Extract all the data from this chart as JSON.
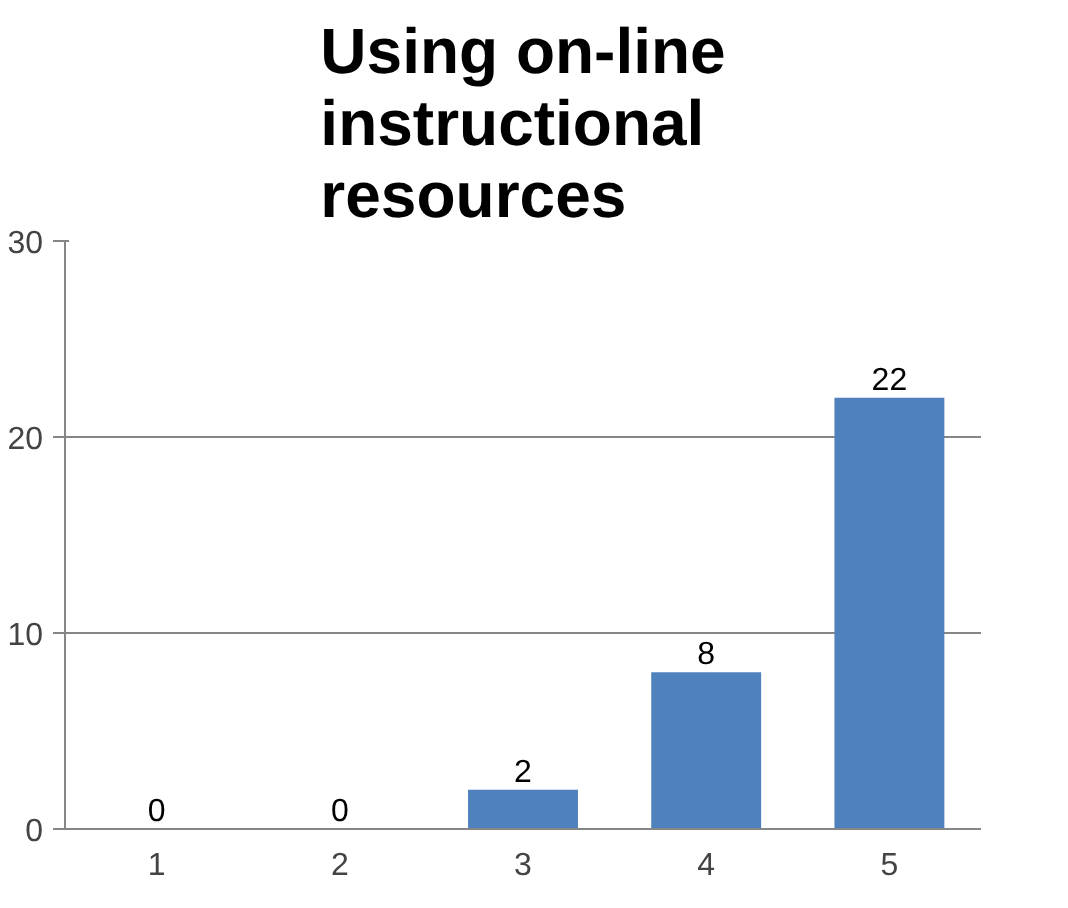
{
  "chart_data": {
    "type": "bar",
    "title": "Using on-line instructional resources",
    "categories": [
      "1",
      "2",
      "3",
      "4",
      "5"
    ],
    "values": [
      0,
      0,
      2,
      8,
      22
    ],
    "color": "#4f81bd",
    "ylim": [
      0,
      30
    ],
    "yticks": [
      0,
      10,
      20,
      30
    ],
    "grid": "y",
    "data_labels": true
  }
}
